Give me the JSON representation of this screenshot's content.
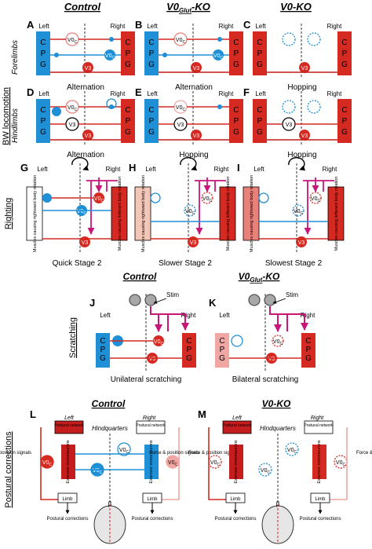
{
  "colors": {
    "red": "#d42a22",
    "darkred": "#c41d1d",
    "blue": "#1f8fd6",
    "magenta": "#c8157a",
    "pink": "#f0a7a4",
    "lightred": "#e8817a",
    "gray": "#a8a8a8"
  },
  "headers": {
    "control": "Control",
    "v0glut_ko_pre": "V0",
    "v0glut_ko_sub": "Glut",
    "v0glut_ko_post": "-KO",
    "v0_ko": "V0-KO"
  },
  "sections": {
    "bw_locomotion": "BW locomotion",
    "forelimbs": "Forelimbs",
    "hindlimbs": "Hindlimbs",
    "righting": "Righting",
    "scratching": "Scratching",
    "postural": "Postural corrections"
  },
  "common": {
    "left": "Left",
    "right": "Right",
    "cpg_c": "C",
    "cpg_p": "P",
    "cpg_g": "G",
    "v0c_main": "V0",
    "v0c_sub": "C",
    "v3": "V3",
    "stim": "Stim"
  },
  "panels": {
    "A": {
      "letter": "A",
      "caption": "Alternation"
    },
    "B": {
      "letter": "B",
      "caption": "Alternation"
    },
    "C": {
      "letter": "C",
      "caption": "Hopping"
    },
    "D": {
      "letter": "D",
      "caption": "Alternation"
    },
    "E": {
      "letter": "E",
      "caption": "Hopping"
    },
    "F": {
      "letter": "F",
      "caption": "Hopping"
    },
    "G": {
      "letter": "G",
      "caption": "Quick Stage 2"
    },
    "H": {
      "letter": "H",
      "caption": "Slower Stage 2"
    },
    "I": {
      "letter": "I",
      "caption": "Slowest Stage 2"
    },
    "J": {
      "letter": "J",
      "caption": "Unilateral scratching"
    },
    "K": {
      "letter": "K",
      "caption": "Bilateral scratching"
    },
    "L": {
      "letter": "L"
    },
    "M": {
      "letter": "M"
    }
  },
  "righting": {
    "left_box": "Muscles causing rightward body rotation",
    "right_box": "Muscles causing leftward body rotation"
  },
  "postural": {
    "control": "Control",
    "v0ko": "V0-KO",
    "hindquarters": "Hindquarters",
    "left": "Left",
    "right": "Right",
    "postural_network": "Postural network",
    "extensor_motoneurons": "Extensor motoneurons",
    "force_position": "Force & position signals",
    "limb": "Limb",
    "postural_corrections": "Postural corrections",
    "beta": "β"
  }
}
